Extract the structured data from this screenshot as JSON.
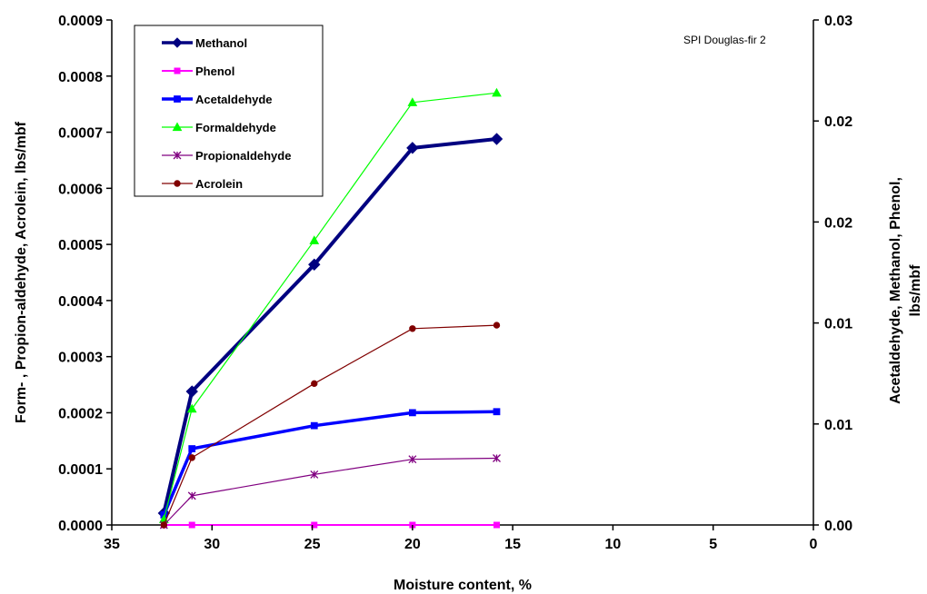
{
  "chart_data": {
    "type": "line",
    "annotation": "SPI Douglas-fir 2",
    "xlabel": "Moisture content, %",
    "ylabel_left": "Form- , Propion-aldehyde, Acrolein, lbs/mbf",
    "ylabel_right_line1": "Acetaldehyde, Methanol, Phenol,",
    "ylabel_right_line2": "lbs/mbf",
    "xlim": [
      35,
      0
    ],
    "x_reversed": true,
    "x_ticks": [
      "35",
      "30",
      "25",
      "20",
      "15",
      "10",
      "5",
      "0"
    ],
    "ylim_left": [
      0,
      0.0009
    ],
    "y_left_ticks": [
      "0.0000",
      "0.0001",
      "0.0002",
      "0.0003",
      "0.0004",
      "0.0005",
      "0.0006",
      "0.0007",
      "0.0008",
      "0.0009"
    ],
    "ylim_right": [
      0,
      0.03
    ],
    "y_right_ticks": [
      "0.00",
      "0.01",
      "0.01",
      "0.02",
      "0.02",
      "0.03"
    ],
    "grid": false,
    "legend_position": "top-left",
    "series": [
      {
        "name": "Methanol",
        "axis": "right",
        "color": "#000080",
        "marker": "diamond",
        "x": [
          32.4,
          31.0,
          24.9,
          20.0,
          15.8
        ],
        "y": [
          0.0007,
          0.00793,
          0.01547,
          0.0224,
          0.02293
        ]
      },
      {
        "name": "Phenol",
        "axis": "right",
        "color": "#ff00ff",
        "marker": "square",
        "x": [
          32.4,
          31.0,
          24.9,
          20.0,
          15.8
        ],
        "y": [
          0.0,
          0.0,
          0.0,
          0.0,
          0.0
        ]
      },
      {
        "name": "Acetaldehyde",
        "axis": "right",
        "color": "#0000ff",
        "marker": "square",
        "x": [
          32.4,
          31.0,
          24.9,
          20.0,
          15.8
        ],
        "y": [
          0.0006,
          0.00453,
          0.0059,
          0.00667,
          0.00673
        ]
      },
      {
        "name": "Formaldehyde",
        "axis": "left",
        "color": "#00ff00",
        "marker": "triangle",
        "x": [
          32.4,
          31.0,
          24.9,
          20.0,
          15.8
        ],
        "y": [
          1e-05,
          0.000207,
          0.000507,
          0.000753,
          0.00077
        ]
      },
      {
        "name": "Propionaldehyde",
        "axis": "left",
        "color": "#800080",
        "marker": "star",
        "x": [
          32.4,
          31.0,
          24.9,
          20.0,
          15.8
        ],
        "y": [
          0.0,
          5.2e-05,
          9e-05,
          0.000117,
          0.000119
        ]
      },
      {
        "name": "Acrolein",
        "axis": "left",
        "color": "#800000",
        "marker": "circle",
        "x": [
          32.4,
          31.0,
          24.9,
          20.0,
          15.8
        ],
        "y": [
          0.0,
          0.00012,
          0.000252,
          0.00035,
          0.000356
        ]
      }
    ]
  }
}
